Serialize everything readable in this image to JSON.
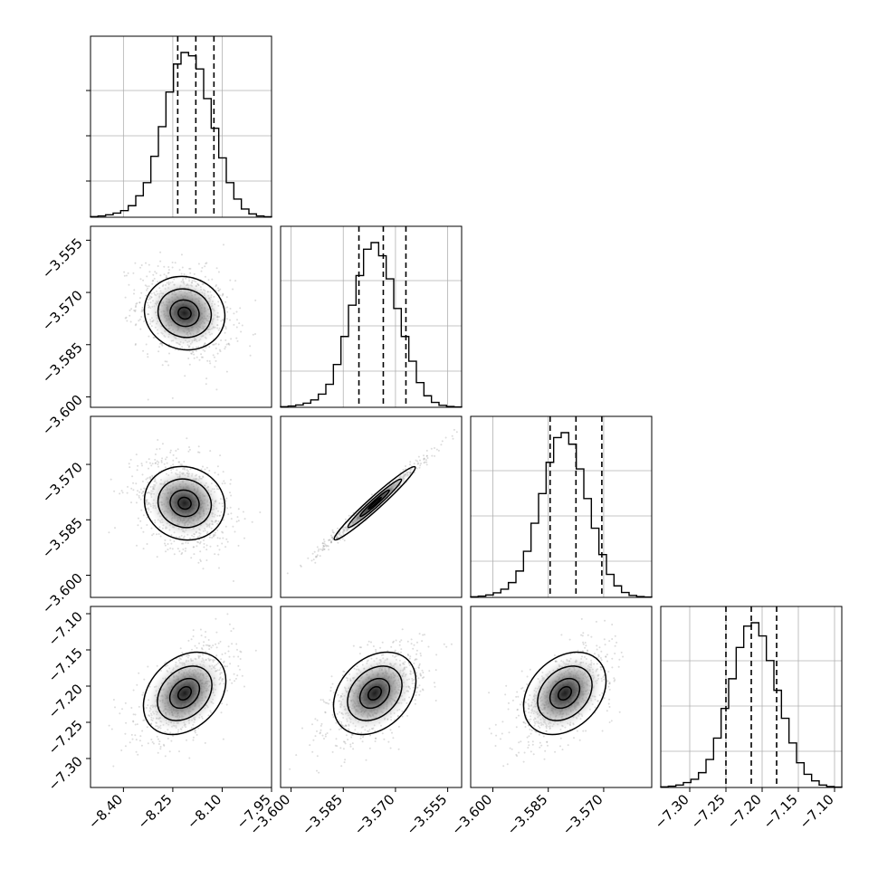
{
  "chart_data": {
    "type": "corner",
    "parameters": [
      {
        "ticks": [
          -8.4,
          -8.25,
          -8.1,
          -7.95
        ],
        "tick_labels": [
          "−8.40",
          "−8.25",
          "−8.10",
          "−7.95"
        ],
        "range": [
          -8.5,
          -7.95
        ]
      },
      {
        "ticks": [
          -3.6,
          -3.585,
          -3.57,
          -3.555
        ],
        "tick_labels": [
          "−3.600",
          "−3.585",
          "−3.570",
          "−3.555"
        ],
        "range": [
          -3.603,
          -3.551
        ]
      },
      {
        "ticks": [
          -3.6,
          -3.585,
          -3.57
        ],
        "tick_labels": [
          "−3.600",
          "−3.585",
          "−3.570"
        ],
        "range": [
          -3.606,
          -3.557
        ]
      },
      {
        "ticks": [
          -7.3,
          -7.25,
          -7.2,
          -7.15,
          -7.1
        ],
        "tick_labels": [
          "−7.30",
          "−7.25",
          "−7.20",
          "−7.15",
          "−7.10"
        ],
        "range": [
          -7.34,
          -7.09
        ]
      }
    ],
    "quantiles": [
      [
        -8.235,
        -8.18,
        -8.125
      ],
      [
        -3.5805,
        -3.5735,
        -3.567
      ],
      [
        -3.5845,
        -3.5775,
        -3.5705
      ],
      [
        -7.25,
        -7.215,
        -7.18
      ]
    ],
    "histograms": [
      [
        0.004,
        0.008,
        0.015,
        0.025,
        0.04,
        0.07,
        0.13,
        0.21,
        0.37,
        0.55,
        0.76,
        0.93,
        1.0,
        0.98,
        0.9,
        0.72,
        0.54,
        0.36,
        0.21,
        0.11,
        0.05,
        0.02,
        0.008,
        0.003
      ],
      [
        0.004,
        0.008,
        0.014,
        0.025,
        0.045,
        0.08,
        0.14,
        0.26,
        0.43,
        0.62,
        0.8,
        0.96,
        1.0,
        0.92,
        0.78,
        0.6,
        0.43,
        0.28,
        0.15,
        0.07,
        0.03,
        0.012,
        0.005,
        0.002
      ],
      [
        0.004,
        0.008,
        0.015,
        0.028,
        0.05,
        0.09,
        0.16,
        0.28,
        0.45,
        0.63,
        0.82,
        0.97,
        1.0,
        0.93,
        0.78,
        0.6,
        0.42,
        0.26,
        0.14,
        0.07,
        0.03,
        0.012,
        0.005,
        0.002
      ],
      [
        0.004,
        0.008,
        0.015,
        0.03,
        0.05,
        0.09,
        0.17,
        0.3,
        0.48,
        0.66,
        0.85,
        0.98,
        1.0,
        0.92,
        0.77,
        0.59,
        0.42,
        0.27,
        0.15,
        0.08,
        0.04,
        0.015,
        0.006,
        0.002
      ]
    ],
    "correlations": {
      "1-0": -0.25,
      "2-0": -0.25,
      "2-1": 0.99,
      "3-0": 0.55,
      "3-1": 0.55,
      "3-2": 0.55
    },
    "grid": true,
    "colors": {
      "hist_line": "#000000",
      "points": "#9a9a9a",
      "grid": "#b0b0b0",
      "axis": "#000000"
    }
  }
}
